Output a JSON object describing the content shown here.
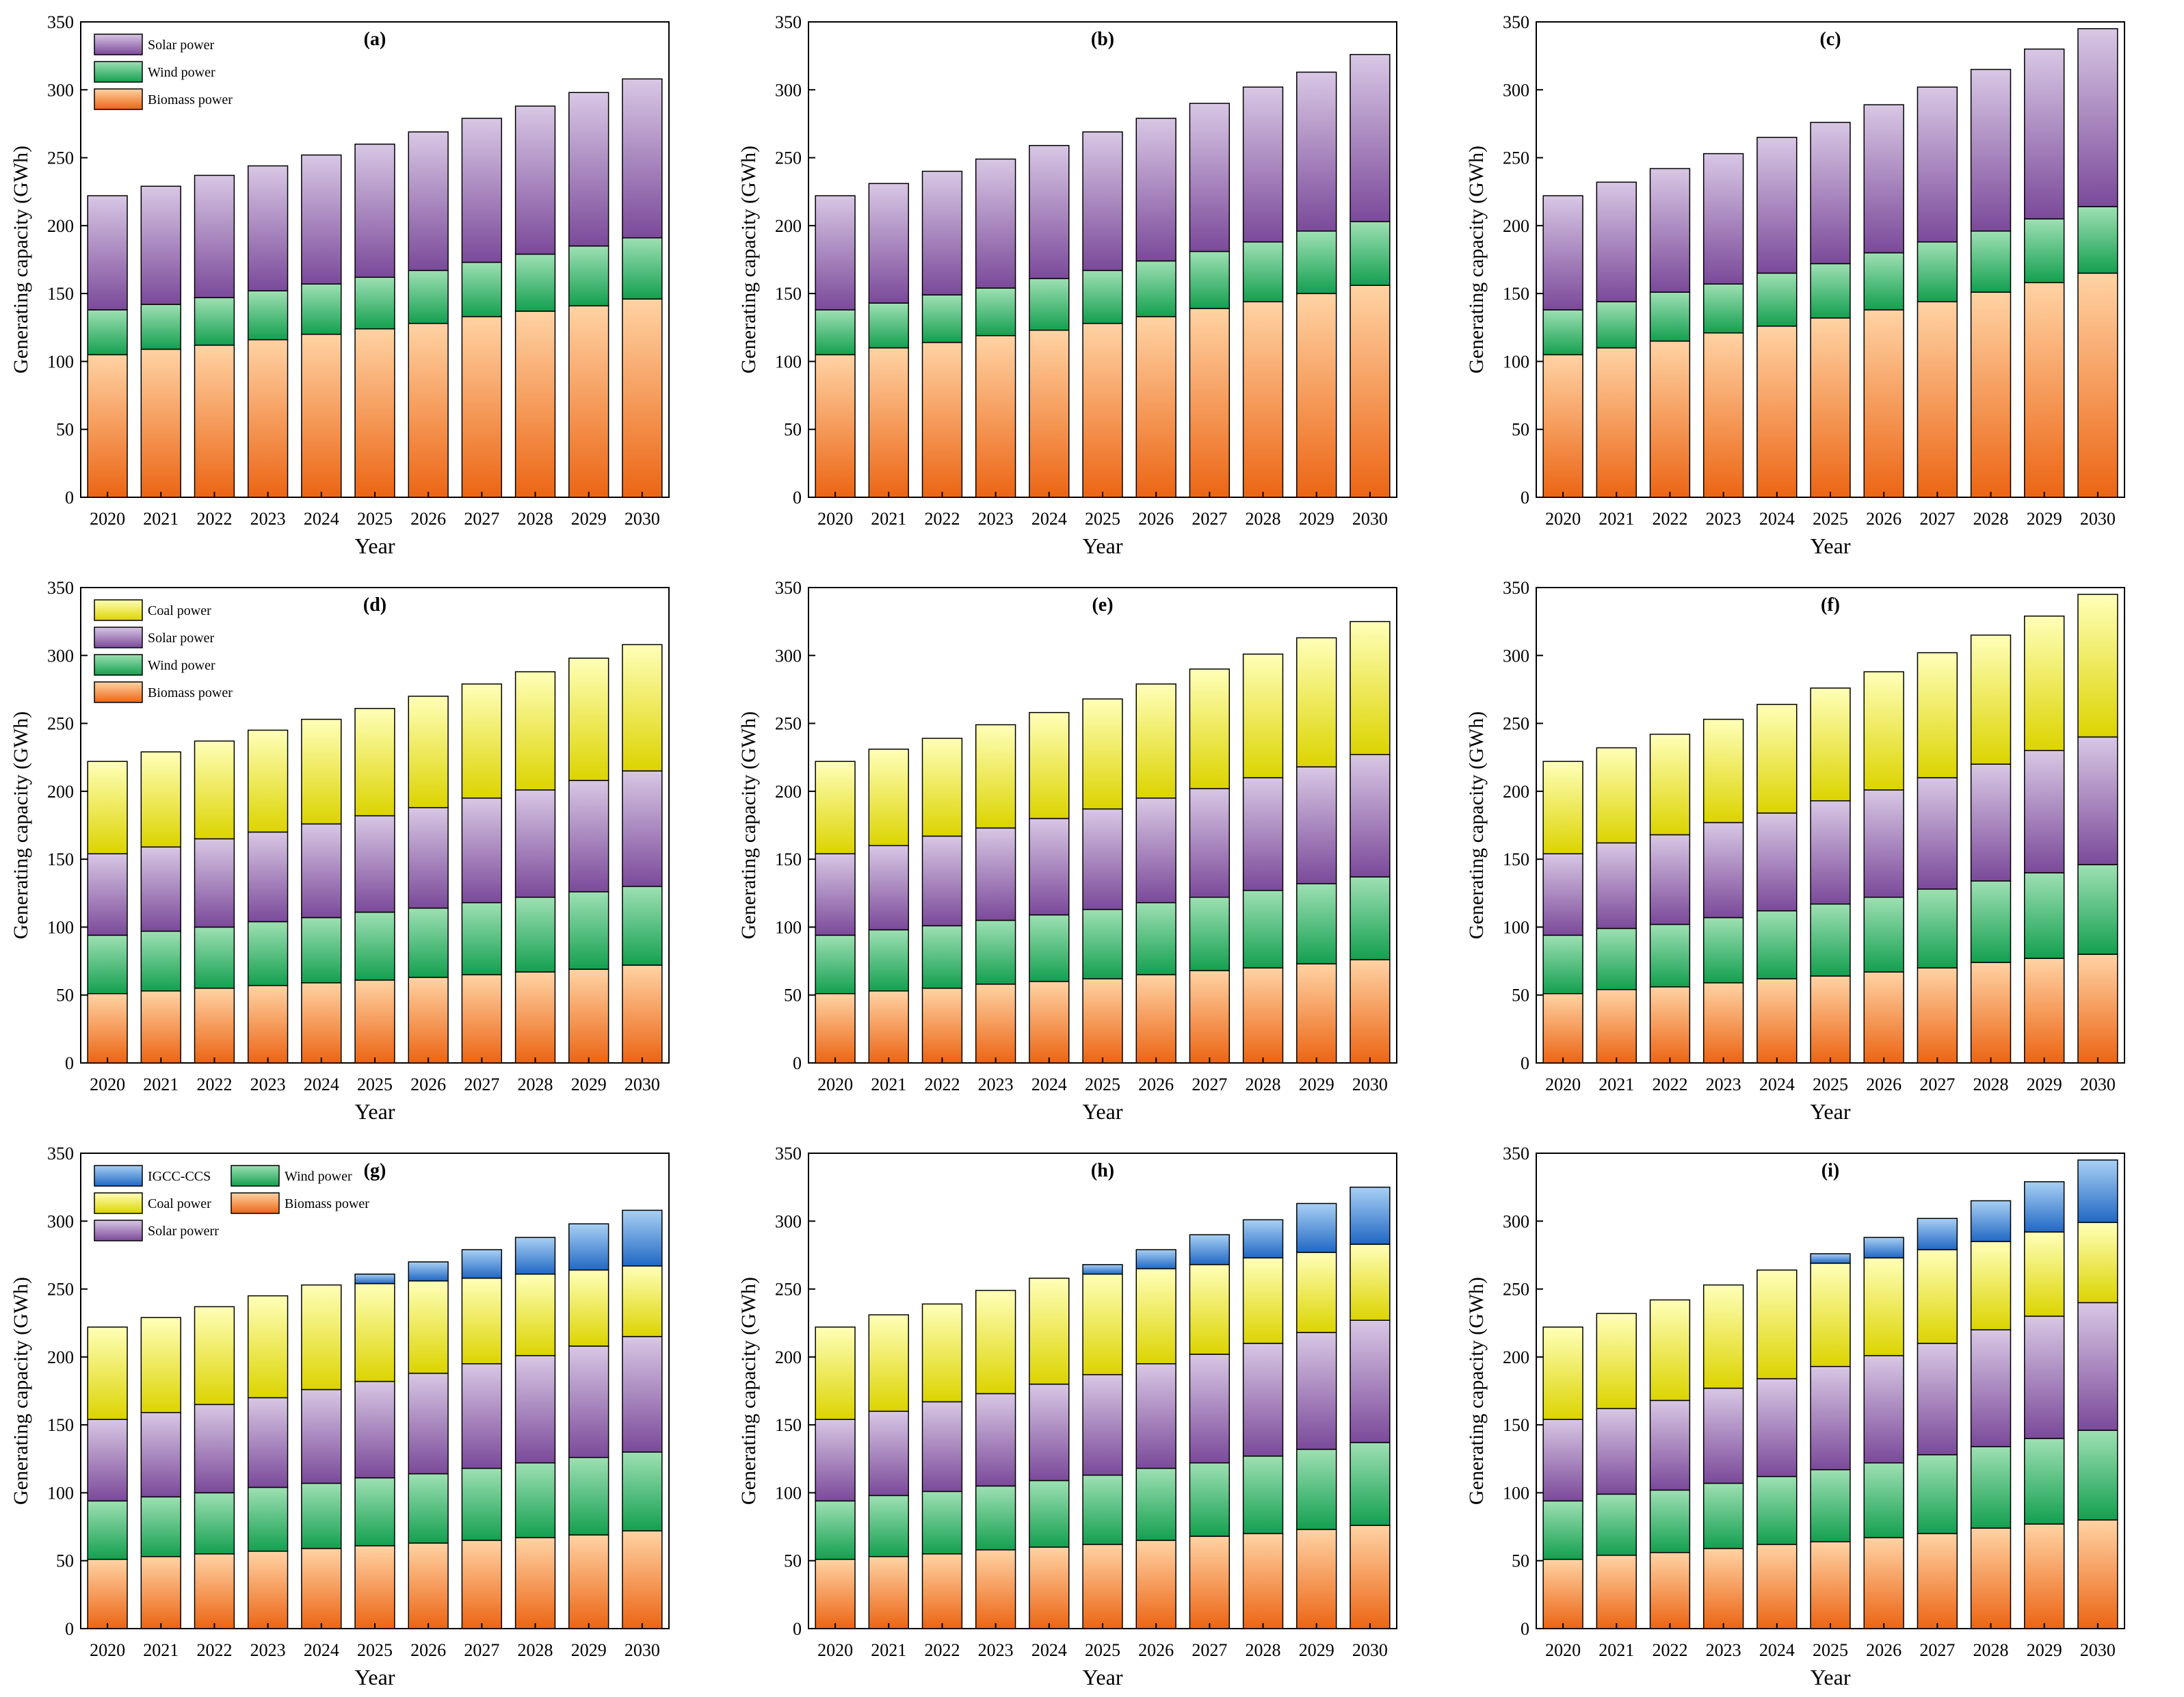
{
  "figure": {
    "colors": {
      "biomass_top": "#ffd3a4",
      "biomass_bottom": "#ec6514",
      "wind_top": "#9ee0b3",
      "wind_bottom": "#14a050",
      "solar_top": "#d8c7e4",
      "solar_bottom": "#7b4a9a",
      "coal_top": "#ffffb8",
      "coal_bottom": "#dcd400",
      "igcc_top": "#a8d0f4",
      "igcc_bottom": "#2168c4"
    }
  },
  "chart_data": [
    {
      "type": "bar",
      "stacked": true,
      "title": "(a)",
      "xlabel": "Year",
      "ylabel": "Generating capacity (GWh)",
      "ylim": [
        0,
        350
      ],
      "yticks": [
        0,
        50,
        100,
        150,
        200,
        250,
        300,
        350
      ],
      "legend_placement": "top-left",
      "categories": [
        "2020",
        "2021",
        "2022",
        "2023",
        "2024",
        "2025",
        "2026",
        "2027",
        "2028",
        "2029",
        "2030"
      ],
      "series": [
        {
          "name": "Biomass power",
          "key": "biomass",
          "values": [
            105,
            109,
            112,
            116,
            120,
            124,
            128,
            133,
            137,
            141,
            146
          ]
        },
        {
          "name": "Wind power",
          "key": "wind",
          "values": [
            33,
            33,
            35,
            36,
            37,
            38,
            39,
            40,
            42,
            44,
            45
          ]
        },
        {
          "name": "Solar power",
          "key": "solar",
          "values": [
            84,
            87,
            90,
            92,
            95,
            98,
            102,
            106,
            109,
            113,
            117
          ]
        }
      ],
      "legend": [
        {
          "name": "Solar power",
          "key": "solar"
        },
        {
          "name": "Wind power",
          "key": "wind"
        },
        {
          "name": "Biomass power",
          "key": "biomass"
        }
      ]
    },
    {
      "type": "bar",
      "stacked": true,
      "title": "(b)",
      "xlabel": "Year",
      "ylabel": "Generating capacity (GWh)",
      "ylim": [
        0,
        350
      ],
      "yticks": [
        0,
        50,
        100,
        150,
        200,
        250,
        300,
        350
      ],
      "categories": [
        "2020",
        "2021",
        "2022",
        "2023",
        "2024",
        "2025",
        "2026",
        "2027",
        "2028",
        "2029",
        "2030"
      ],
      "series": [
        {
          "name": "Biomass power",
          "key": "biomass",
          "values": [
            105,
            110,
            114,
            119,
            123,
            128,
            133,
            139,
            144,
            150,
            156
          ]
        },
        {
          "name": "Wind power",
          "key": "wind",
          "values": [
            33,
            33,
            35,
            35,
            38,
            39,
            41,
            42,
            44,
            46,
            47
          ]
        },
        {
          "name": "Solar power",
          "key": "solar",
          "values": [
            84,
            88,
            91,
            95,
            98,
            102,
            105,
            109,
            114,
            117,
            123
          ]
        }
      ]
    },
    {
      "type": "bar",
      "stacked": true,
      "title": "(c)",
      "xlabel": "Year",
      "ylabel": "Generating capacity (GWh)",
      "ylim": [
        0,
        350
      ],
      "yticks": [
        0,
        50,
        100,
        150,
        200,
        250,
        300,
        350
      ],
      "categories": [
        "2020",
        "2021",
        "2022",
        "2023",
        "2024",
        "2025",
        "2026",
        "2027",
        "2028",
        "2029",
        "2030"
      ],
      "series": [
        {
          "name": "Biomass power",
          "key": "biomass",
          "values": [
            105,
            110,
            115,
            121,
            126,
            132,
            138,
            144,
            151,
            158,
            165
          ]
        },
        {
          "name": "Wind power",
          "key": "wind",
          "values": [
            33,
            34,
            36,
            36,
            39,
            40,
            42,
            44,
            45,
            47,
            49
          ]
        },
        {
          "name": "Solar power",
          "key": "solar",
          "values": [
            84,
            88,
            91,
            96,
            100,
            104,
            109,
            114,
            119,
            125,
            131
          ]
        }
      ]
    },
    {
      "type": "bar",
      "stacked": true,
      "title": "(d)",
      "xlabel": "Year",
      "ylabel": "Generating capacity (GWh)",
      "ylim": [
        0,
        350
      ],
      "yticks": [
        0,
        50,
        100,
        150,
        200,
        250,
        300,
        350
      ],
      "legend_placement": "top-left",
      "categories": [
        "2020",
        "2021",
        "2022",
        "2023",
        "2024",
        "2025",
        "2026",
        "2027",
        "2028",
        "2029",
        "2030"
      ],
      "series": [
        {
          "name": "Biomass power",
          "key": "biomass",
          "values": [
            51,
            53,
            55,
            57,
            59,
            61,
            63,
            65,
            67,
            69,
            72
          ]
        },
        {
          "name": "Wind power",
          "key": "wind",
          "values": [
            43,
            44,
            45,
            47,
            48,
            50,
            51,
            53,
            55,
            57,
            58
          ]
        },
        {
          "name": "Solar power",
          "key": "solar",
          "values": [
            60,
            62,
            65,
            66,
            69,
            71,
            74,
            77,
            79,
            82,
            85
          ]
        },
        {
          "name": "Coal power",
          "key": "coal",
          "values": [
            68,
            70,
            72,
            75,
            77,
            79,
            82,
            84,
            87,
            90,
            93
          ]
        }
      ],
      "legend": [
        {
          "name": "Coal power",
          "key": "coal"
        },
        {
          "name": "Solar power",
          "key": "solar"
        },
        {
          "name": "Wind power",
          "key": "wind"
        },
        {
          "name": "Biomass power",
          "key": "biomass"
        }
      ]
    },
    {
      "type": "bar",
      "stacked": true,
      "title": "(e)",
      "xlabel": "Year",
      "ylabel": "Generating capacity (GWh)",
      "ylim": [
        0,
        350
      ],
      "yticks": [
        0,
        50,
        100,
        150,
        200,
        250,
        300,
        350
      ],
      "categories": [
        "2020",
        "2021",
        "2022",
        "2023",
        "2024",
        "2025",
        "2026",
        "2027",
        "2028",
        "2029",
        "2030"
      ],
      "series": [
        {
          "name": "Biomass power",
          "key": "biomass",
          "values": [
            51,
            53,
            55,
            58,
            60,
            62,
            65,
            68,
            70,
            73,
            76
          ]
        },
        {
          "name": "Wind power",
          "key": "wind",
          "values": [
            43,
            45,
            46,
            47,
            49,
            51,
            53,
            54,
            57,
            59,
            61
          ]
        },
        {
          "name": "Solar power",
          "key": "solar",
          "values": [
            60,
            62,
            66,
            68,
            71,
            74,
            77,
            80,
            83,
            86,
            90
          ]
        },
        {
          "name": "Coal power",
          "key": "coal",
          "values": [
            68,
            71,
            72,
            76,
            78,
            81,
            84,
            88,
            91,
            95,
            98
          ]
        }
      ]
    },
    {
      "type": "bar",
      "stacked": true,
      "title": "(f)",
      "xlabel": "Year",
      "ylabel": "Generating capacity (GWh)",
      "ylim": [
        0,
        350
      ],
      "yticks": [
        0,
        50,
        100,
        150,
        200,
        250,
        300,
        350
      ],
      "categories": [
        "2020",
        "2021",
        "2022",
        "2023",
        "2024",
        "2025",
        "2026",
        "2027",
        "2028",
        "2029",
        "2030"
      ],
      "series": [
        {
          "name": "Biomass power",
          "key": "biomass",
          "values": [
            51,
            54,
            56,
            59,
            62,
            64,
            67,
            70,
            74,
            77,
            80
          ]
        },
        {
          "name": "Wind power",
          "key": "wind",
          "values": [
            43,
            45,
            46,
            48,
            50,
            53,
            55,
            58,
            60,
            63,
            66
          ]
        },
        {
          "name": "Solar power",
          "key": "solar",
          "values": [
            60,
            63,
            66,
            70,
            72,
            76,
            79,
            82,
            86,
            90,
            94
          ]
        },
        {
          "name": "Coal power",
          "key": "coal",
          "values": [
            68,
            70,
            74,
            76,
            80,
            83,
            87,
            92,
            95,
            99,
            105
          ]
        }
      ]
    },
    {
      "type": "bar",
      "stacked": true,
      "title": "(g)",
      "xlabel": "Year",
      "ylabel": "Generating capacity (GWh)",
      "ylim": [
        0,
        350
      ],
      "yticks": [
        0,
        50,
        100,
        150,
        200,
        250,
        300,
        350
      ],
      "legend_placement": "top-left",
      "categories": [
        "2020",
        "2021",
        "2022",
        "2023",
        "2024",
        "2025",
        "2026",
        "2027",
        "2028",
        "2029",
        "2030"
      ],
      "series": [
        {
          "name": "Biomass power",
          "key": "biomass",
          "values": [
            51,
            53,
            55,
            57,
            59,
            61,
            63,
            65,
            67,
            69,
            72
          ]
        },
        {
          "name": "Wind power",
          "key": "wind",
          "values": [
            43,
            44,
            45,
            47,
            48,
            50,
            51,
            53,
            55,
            57,
            58
          ]
        },
        {
          "name": "Solar powerr",
          "key": "solar",
          "values": [
            60,
            62,
            65,
            66,
            69,
            71,
            74,
            77,
            79,
            82,
            85
          ]
        },
        {
          "name": "Coal power",
          "key": "coal",
          "values": [
            68,
            70,
            72,
            75,
            77,
            72,
            68,
            63,
            60,
            56,
            52
          ]
        },
        {
          "name": "IGCC-CCS",
          "key": "igcc",
          "values": [
            0,
            0,
            0,
            0,
            0,
            7,
            14,
            21,
            27,
            34,
            41
          ]
        }
      ],
      "legend": [
        {
          "name": "IGCC-CCS",
          "key": "igcc"
        },
        {
          "name": "Wind power",
          "key": "wind"
        },
        {
          "name": "Coal power",
          "key": "coal"
        },
        {
          "name": "Biomass power",
          "key": "biomass"
        },
        {
          "name": "Solar powerr",
          "key": "solar"
        }
      ]
    },
    {
      "type": "bar",
      "stacked": true,
      "title": "(h)",
      "xlabel": "Year",
      "ylabel": "Generating capacity (GWh)",
      "ylim": [
        0,
        350
      ],
      "yticks": [
        0,
        50,
        100,
        150,
        200,
        250,
        300,
        350
      ],
      "categories": [
        "2020",
        "2021",
        "2022",
        "2023",
        "2024",
        "2025",
        "2026",
        "2027",
        "2028",
        "2029",
        "2030"
      ],
      "series": [
        {
          "name": "Biomass power",
          "key": "biomass",
          "values": [
            51,
            53,
            55,
            58,
            60,
            62,
            65,
            68,
            70,
            73,
            76
          ]
        },
        {
          "name": "Wind power",
          "key": "wind",
          "values": [
            43,
            45,
            46,
            47,
            49,
            51,
            53,
            54,
            57,
            59,
            61
          ]
        },
        {
          "name": "Solar power",
          "key": "solar",
          "values": [
            60,
            62,
            66,
            68,
            71,
            74,
            77,
            80,
            83,
            86,
            90
          ]
        },
        {
          "name": "Coal power",
          "key": "coal",
          "values": [
            68,
            71,
            72,
            76,
            78,
            74,
            70,
            66,
            63,
            59,
            56
          ]
        },
        {
          "name": "IGCC-CCS",
          "key": "igcc",
          "values": [
            0,
            0,
            0,
            0,
            0,
            7,
            14,
            22,
            28,
            36,
            42
          ]
        }
      ]
    },
    {
      "type": "bar",
      "stacked": true,
      "title": "(i)",
      "xlabel": "Year",
      "ylabel": "Generating capacity (GWh)",
      "ylim": [
        0,
        350
      ],
      "yticks": [
        0,
        50,
        100,
        150,
        200,
        250,
        300,
        350
      ],
      "categories": [
        "2020",
        "2021",
        "2022",
        "2023",
        "2024",
        "2025",
        "2026",
        "2027",
        "2028",
        "2029",
        "2030"
      ],
      "series": [
        {
          "name": "Biomass power",
          "key": "biomass",
          "values": [
            51,
            54,
            56,
            59,
            62,
            64,
            67,
            70,
            74,
            77,
            80
          ]
        },
        {
          "name": "Wind power",
          "key": "wind",
          "values": [
            43,
            45,
            46,
            48,
            50,
            53,
            55,
            58,
            60,
            63,
            66
          ]
        },
        {
          "name": "Solar power",
          "key": "solar",
          "values": [
            60,
            63,
            66,
            70,
            72,
            76,
            79,
            82,
            86,
            90,
            94
          ]
        },
        {
          "name": "Coal power",
          "key": "coal",
          "values": [
            68,
            70,
            74,
            76,
            80,
            76,
            72,
            69,
            65,
            62,
            59
          ]
        },
        {
          "name": "IGCC-CCS",
          "key": "igcc",
          "values": [
            0,
            0,
            0,
            0,
            0,
            7,
            15,
            23,
            30,
            37,
            46
          ]
        }
      ]
    }
  ]
}
